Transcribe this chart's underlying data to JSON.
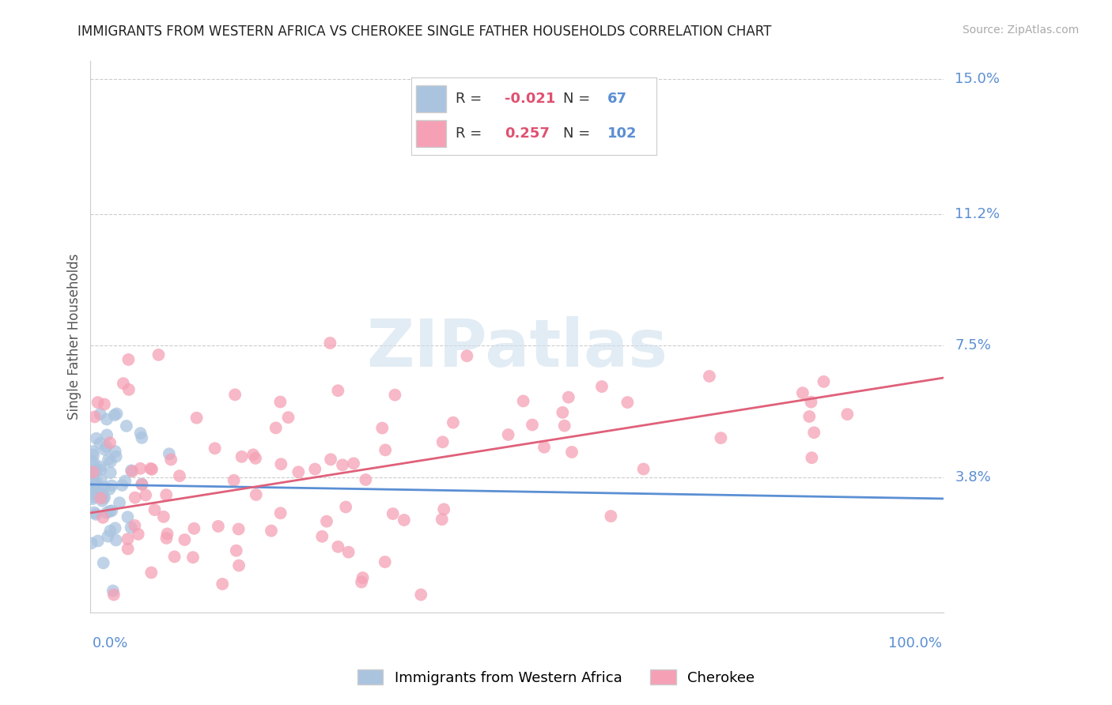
{
  "title": "IMMIGRANTS FROM WESTERN AFRICA VS CHEROKEE SINGLE FATHER HOUSEHOLDS CORRELATION CHART",
  "source": "Source: ZipAtlas.com",
  "ylabel": "Single Father Households",
  "blue_R": -0.021,
  "blue_N": 67,
  "pink_R": 0.257,
  "pink_N": 102,
  "blue_label": "Immigrants from Western Africa",
  "pink_label": "Cherokee",
  "title_color": "#222222",
  "source_color": "#aaaaaa",
  "blue_dot_color": "#aac4e0",
  "pink_dot_color": "#f5a0b5",
  "blue_line_color": "#5b8fd4",
  "pink_line_color": "#e0607a",
  "axis_label_color": "#5b8fd4",
  "ytick_vals": [
    0.038,
    0.075,
    0.112,
    0.15
  ],
  "ytick_labels": [
    "3.8%",
    "7.5%",
    "11.2%",
    "15.0%"
  ],
  "xmin": 0.0,
  "xmax": 1.0,
  "ymin": 0.0,
  "ymax": 0.155,
  "blue_intercept": 0.036,
  "blue_slope": -0.004,
  "pink_intercept": 0.028,
  "pink_slope": 0.038,
  "watermark_text": "ZIPatlas",
  "watermark_color": "#d0e0ed",
  "legend_R_color": "#e05070",
  "legend_N_color": "#5b8fd4"
}
